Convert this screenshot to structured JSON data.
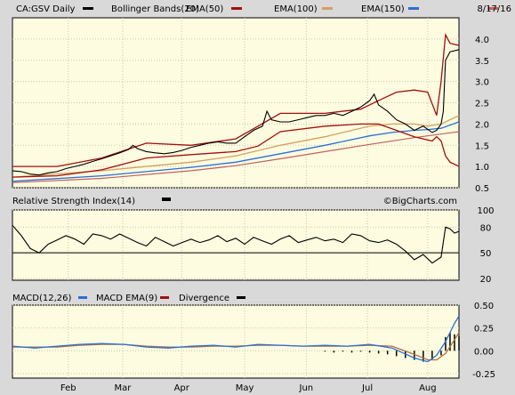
{
  "chart_data": [
    {
      "type": "line",
      "panel": "price",
      "title": "CA:GSV Daily",
      "date_label": "8/17/16",
      "legend": [
        {
          "label": "Bollinger Bands(20)",
          "color": "#000000"
        },
        {
          "label": "EMA(50)",
          "color": "#a01010"
        },
        {
          "label": "EMA(100)",
          "color": "#d4a060"
        },
        {
          "label": "EMA(150)",
          "color": "#2a6fd6"
        },
        {
          "label": "",
          "color": "#c06060"
        }
      ],
      "ylim": [
        0.5,
        4.5
      ],
      "yticks": [
        "4.0",
        "3.5",
        "3.0",
        "2.5",
        "2.0",
        "1.5",
        "1.0",
        "0.5"
      ],
      "ytick_values": [
        4.0,
        3.5,
        3.0,
        2.5,
        2.0,
        1.5,
        1.0,
        0.5
      ],
      "x_months": [
        "Feb",
        "Mar",
        "Apr",
        "May",
        "Jun",
        "Jul",
        "Aug"
      ],
      "x_month_pos": [
        0.125,
        0.247,
        0.379,
        0.52,
        0.658,
        0.795,
        0.93
      ],
      "price_series": {
        "x": [
          0,
          0.02,
          0.04,
          0.06,
          0.08,
          0.1,
          0.12,
          0.14,
          0.16,
          0.18,
          0.2,
          0.22,
          0.24,
          0.26,
          0.27,
          0.28,
          0.3,
          0.32,
          0.34,
          0.36,
          0.38,
          0.4,
          0.42,
          0.44,
          0.46,
          0.48,
          0.5,
          0.52,
          0.54,
          0.56,
          0.57,
          0.58,
          0.6,
          0.62,
          0.64,
          0.66,
          0.68,
          0.7,
          0.72,
          0.74,
          0.76,
          0.78,
          0.8,
          0.81,
          0.82,
          0.84,
          0.86,
          0.88,
          0.9,
          0.92,
          0.94,
          0.95,
          0.96,
          0.965,
          0.97,
          0.98,
          1.0
        ],
        "y": [
          0.9,
          0.88,
          0.82,
          0.8,
          0.85,
          0.88,
          0.95,
          1.0,
          1.05,
          1.12,
          1.18,
          1.25,
          1.32,
          1.4,
          1.5,
          1.42,
          1.35,
          1.32,
          1.3,
          1.33,
          1.38,
          1.45,
          1.5,
          1.55,
          1.58,
          1.55,
          1.55,
          1.7,
          1.85,
          1.95,
          2.3,
          2.1,
          2.05,
          2.05,
          2.1,
          2.15,
          2.2,
          2.2,
          2.25,
          2.2,
          2.3,
          2.4,
          2.55,
          2.7,
          2.45,
          2.3,
          2.1,
          2.0,
          1.85,
          1.95,
          1.8,
          1.85,
          2.0,
          2.3,
          3.5,
          3.7,
          3.75
        ]
      },
      "upper_band": {
        "x": [
          0,
          0.1,
          0.2,
          0.3,
          0.4,
          0.5,
          0.55,
          0.6,
          0.7,
          0.78,
          0.82,
          0.86,
          0.9,
          0.93,
          0.95,
          0.96,
          0.97,
          0.98,
          1.0
        ],
        "y": [
          1.0,
          1.0,
          1.2,
          1.55,
          1.5,
          1.65,
          1.95,
          2.25,
          2.25,
          2.35,
          2.55,
          2.75,
          2.8,
          2.75,
          2.2,
          3.0,
          4.1,
          3.9,
          3.85
        ]
      },
      "lower_band": {
        "x": [
          0,
          0.1,
          0.2,
          0.3,
          0.4,
          0.5,
          0.55,
          0.6,
          0.7,
          0.78,
          0.82,
          0.86,
          0.9,
          0.92,
          0.94,
          0.95,
          0.96,
          0.97,
          0.98,
          1.0
        ],
        "y": [
          0.75,
          0.78,
          0.92,
          1.2,
          1.28,
          1.35,
          1.48,
          1.82,
          1.95,
          2.0,
          2.0,
          1.85,
          1.7,
          1.65,
          1.6,
          1.7,
          1.6,
          1.25,
          1.1,
          1.0
        ]
      },
      "ema50": {
        "x": [
          0,
          0.2,
          0.4,
          0.5,
          0.6,
          0.7,
          0.8,
          0.85,
          0.9,
          0.93,
          0.96,
          1.0
        ],
        "y": [
          0.85,
          0.95,
          1.2,
          1.35,
          1.6,
          1.8,
          2.05,
          2.1,
          2.05,
          1.95,
          2.05,
          2.35
        ]
      },
      "ema100": {
        "x": [
          0,
          0.2,
          0.4,
          0.5,
          0.6,
          0.7,
          0.8,
          0.85,
          0.9,
          0.93,
          0.96,
          1.0
        ],
        "y": [
          0.75,
          0.9,
          1.1,
          1.25,
          1.5,
          1.7,
          1.95,
          2.0,
          2.0,
          1.95,
          2.0,
          2.2
        ]
      },
      "ema150": {
        "x": [
          0,
          0.2,
          0.4,
          0.5,
          0.6,
          0.7,
          0.8,
          0.85,
          0.9,
          0.93,
          0.96,
          1.0
        ],
        "y": [
          0.65,
          0.78,
          0.98,
          1.1,
          1.3,
          1.5,
          1.72,
          1.8,
          1.85,
          1.87,
          1.9,
          2.05
        ]
      },
      "ema_extra": {
        "x": [
          0,
          0.2,
          0.4,
          0.5,
          0.6,
          0.7,
          0.8,
          0.9,
          1.0
        ],
        "y": [
          0.62,
          0.72,
          0.9,
          1.02,
          1.18,
          1.35,
          1.52,
          1.68,
          1.82
        ]
      }
    },
    {
      "type": "line",
      "panel": "rsi",
      "title": "Relative Strength Index(14)",
      "watermark": "©BigCharts.com",
      "ylim": [
        18,
        100
      ],
      "yticks": [
        "100",
        "80",
        "50",
        "20"
      ],
      "ytick_values": [
        100,
        80,
        50,
        20
      ],
      "reference_level": 50,
      "series": {
        "x": [
          0,
          0.02,
          0.04,
          0.06,
          0.08,
          0.1,
          0.12,
          0.14,
          0.16,
          0.18,
          0.2,
          0.22,
          0.24,
          0.26,
          0.28,
          0.3,
          0.32,
          0.34,
          0.36,
          0.38,
          0.4,
          0.42,
          0.44,
          0.46,
          0.48,
          0.5,
          0.52,
          0.54,
          0.56,
          0.58,
          0.6,
          0.62,
          0.64,
          0.66,
          0.68,
          0.7,
          0.72,
          0.74,
          0.76,
          0.78,
          0.8,
          0.82,
          0.84,
          0.86,
          0.88,
          0.9,
          0.92,
          0.94,
          0.96,
          0.97,
          0.98,
          0.99,
          1.0
        ],
        "y": [
          82,
          70,
          55,
          50,
          60,
          65,
          70,
          66,
          60,
          72,
          70,
          66,
          72,
          67,
          62,
          58,
          68,
          63,
          58,
          62,
          66,
          62,
          65,
          70,
          63,
          67,
          60,
          68,
          64,
          60,
          66,
          70,
          62,
          65,
          68,
          64,
          66,
          62,
          72,
          70,
          64,
          62,
          65,
          60,
          52,
          42,
          48,
          38,
          45,
          80,
          78,
          73,
          75
        ]
      }
    },
    {
      "type": "line",
      "panel": "macd",
      "title": "MACD(12,26)",
      "legend": [
        {
          "label": "MACD(12,26)",
          "color": "#000000"
        },
        {
          "label": "MACD EMA(9)",
          "color": "#2a6fd6"
        },
        {
          "label": "Divergence",
          "color": "#000000"
        }
      ],
      "ylim": [
        -0.3,
        0.5
      ],
      "yticks": [
        "0.50",
        "0.25",
        "0.00",
        "-0.25"
      ],
      "ytick_values": [
        0.5,
        0.25,
        0.0,
        -0.25
      ],
      "macd": {
        "x": [
          0,
          0.05,
          0.1,
          0.15,
          0.2,
          0.25,
          0.3,
          0.35,
          0.4,
          0.45,
          0.5,
          0.55,
          0.6,
          0.65,
          0.7,
          0.75,
          0.8,
          0.85,
          0.9,
          0.93,
          0.95,
          0.97,
          0.99,
          1.0
        ],
        "y": [
          0.05,
          0.03,
          0.05,
          0.07,
          0.08,
          0.07,
          0.04,
          0.03,
          0.05,
          0.06,
          0.04,
          0.07,
          0.06,
          0.05,
          0.06,
          0.05,
          0.07,
          0.03,
          -0.08,
          -0.12,
          -0.05,
          0.1,
          0.3,
          0.38
        ]
      },
      "signal": {
        "x": [
          0,
          0.05,
          0.1,
          0.15,
          0.2,
          0.25,
          0.3,
          0.35,
          0.4,
          0.45,
          0.5,
          0.55,
          0.6,
          0.65,
          0.7,
          0.75,
          0.8,
          0.85,
          0.9,
          0.93,
          0.95,
          0.97,
          0.99,
          1.0
        ],
        "y": [
          0.04,
          0.04,
          0.04,
          0.06,
          0.07,
          0.07,
          0.05,
          0.04,
          0.04,
          0.05,
          0.05,
          0.06,
          0.06,
          0.05,
          0.05,
          0.05,
          0.06,
          0.05,
          -0.04,
          -0.1,
          -0.1,
          -0.03,
          0.12,
          0.2
        ]
      },
      "divergence": {
        "x": [
          0.7,
          0.72,
          0.74,
          0.76,
          0.78,
          0.8,
          0.82,
          0.84,
          0.86,
          0.88,
          0.9,
          0.92,
          0.94,
          0.96,
          0.97,
          0.98,
          0.99,
          1.0
        ],
        "y": [
          -0.01,
          -0.02,
          -0.01,
          -0.02,
          -0.01,
          -0.02,
          -0.03,
          -0.04,
          -0.06,
          -0.08,
          -0.1,
          -0.12,
          -0.1,
          -0.05,
          0.15,
          0.2,
          0.18,
          0.16
        ]
      }
    }
  ]
}
